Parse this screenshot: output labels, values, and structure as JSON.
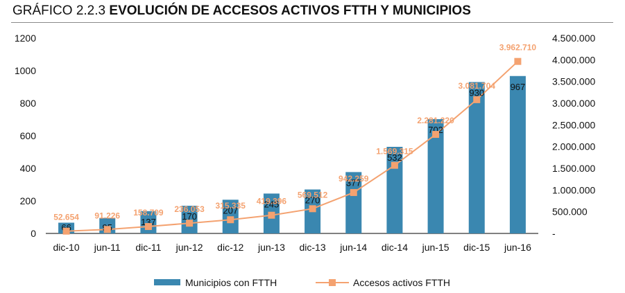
{
  "header": {
    "prefix": "GRÁFICO 2.2.3",
    "title": "EVOLUCIÓN DE ACCESOS ACTIVOS FTTH Y MUNICIPIOS"
  },
  "colors": {
    "bars": "#3a87b0",
    "line": "#f4a270",
    "axis": "#000000"
  },
  "chart_data": {
    "type": "bar",
    "title": "EVOLUCIÓN DE ACCESOS ACTIVOS FTTH Y MUNICIPIOS",
    "categories": [
      "dic-10",
      "jun-11",
      "dic-11",
      "jun-12",
      "dic-12",
      "jun-13",
      "dic-13",
      "jun-14",
      "dic-14",
      "jun-15",
      "dic-15",
      "jun-16"
    ],
    "series": [
      {
        "name": "Municipios con FTTH",
        "type": "bar",
        "axis": "left",
        "values": [
          66,
          95,
          137,
          170,
          207,
          245,
          270,
          377,
          532,
          702,
          930,
          967
        ],
        "labels": [
          "66",
          "95",
          "137",
          "170",
          "207",
          "245",
          "270",
          "377",
          "532",
          "702",
          "930",
          "967"
        ]
      },
      {
        "name": "Accesos activos FTTH",
        "type": "line",
        "marker": "square",
        "axis": "right",
        "values": [
          52654,
          91226,
          158709,
          236053,
          315335,
          419396,
          569512,
          942259,
          1569315,
          2281220,
          3081704,
          3962710
        ],
        "labels": [
          "52.654",
          "91.226",
          "158.709",
          "236.053",
          "315.335",
          "419.396",
          "569.512",
          "942.259",
          "1.569.315",
          "2.281.220",
          "3.081.704",
          "3.962.710"
        ]
      }
    ],
    "y_left": {
      "ylim": [
        0,
        1200
      ],
      "ticks": [
        0,
        200,
        400,
        600,
        800,
        1000,
        1200
      ],
      "tick_labels": [
        "0",
        "200",
        "400",
        "600",
        "800",
        "1000",
        "1200"
      ]
    },
    "y_right": {
      "ylim": [
        0,
        4500000
      ],
      "ticks": [
        0,
        500000,
        1000000,
        1500000,
        2000000,
        2500000,
        3000000,
        3500000,
        4000000,
        4500000
      ],
      "tick_labels": [
        "-",
        "500.000",
        "1.000.000",
        "1.500.000",
        "2.000.000",
        "2.500.000",
        "3.000.000",
        "3.500.000",
        "4.000.000",
        "4.500.000"
      ]
    },
    "xlabel": "",
    "ylabel": "",
    "grid": false,
    "legend": "bottom-center"
  }
}
